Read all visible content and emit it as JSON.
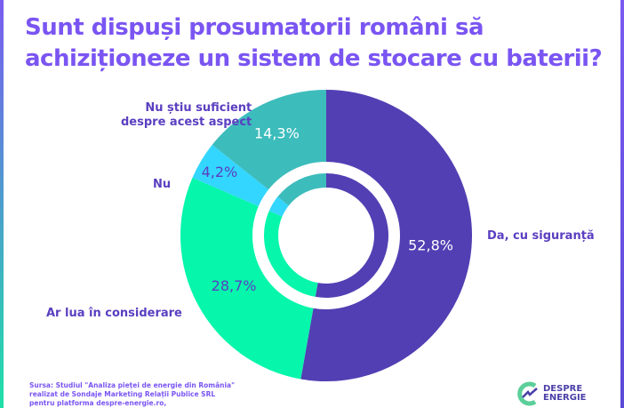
{
  "title_lines": [
    "Sunt dispuși prosumatorii români să",
    "achiziționeze un sistem de stocare cu baterii?"
  ],
  "chart_data": {
    "type": "pie",
    "title": "Sunt dispuși prosumatorii români să achiziționeze un sistem de stocare cu baterii?",
    "slices": [
      {
        "label": "Da, cu siguranță",
        "value": 52.8,
        "value_label": "52,8%",
        "color": "#523fb3",
        "text_color": "#ffffff"
      },
      {
        "label": "Ar lua în considerare",
        "value": 28.7,
        "value_label": "28,7%",
        "color": "#06f6ab",
        "text_color": "#5a3fc0"
      },
      {
        "label": "Nu",
        "value": 4.2,
        "value_label": "4,2%",
        "color": "#33d6ff",
        "text_color": "#5a3fc0"
      },
      {
        "label": "Nu știu suficient despre acest aspect",
        "label_lines": [
          "Nu știu suficient",
          "despre acest aspect"
        ],
        "value": 14.3,
        "value_label": "14,3%",
        "color": "#3dbcbc",
        "text_color": "#ffffff"
      }
    ]
  },
  "source_lines": [
    "Sursa: Studiul \"Analiza pieței de energie din România\"",
    "realizat de Sondaje Marketing Relații Publice SRL",
    "pentru platforma despre-energie.ro,"
  ],
  "logo": {
    "line1": "DESPRE",
    "line2": "ENERGIE"
  }
}
